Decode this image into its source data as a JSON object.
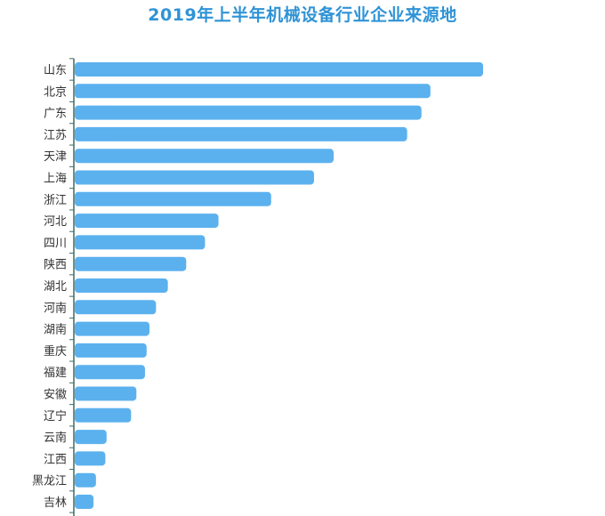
{
  "chart_data": {
    "type": "bar",
    "orientation": "horizontal",
    "title": "2019年上半年机械设备行业企业来源地",
    "xlabel": "",
    "ylabel": "",
    "grid": false,
    "legend": "none",
    "categories": [
      "山东",
      "北京",
      "广东",
      "江苏",
      "天津",
      "上海",
      "浙江",
      "河北",
      "四川",
      "陕西",
      "湖北",
      "河南",
      "湖南",
      "重庆",
      "福建",
      "安徽",
      "辽宁",
      "云南",
      "江西",
      "黑龙江",
      "吉林"
    ],
    "values": [
      100,
      87.1,
      84.9,
      81.4,
      63.4,
      58.6,
      48.1,
      35.2,
      31.9,
      27.3,
      22.8,
      19.9,
      18.3,
      17.6,
      17.2,
      15.1,
      13.8,
      7.8,
      7.5,
      5.2,
      4.6
    ],
    "xlim": [
      0,
      100
    ],
    "colors": {
      "bar": "#5bb1ee",
      "axis": "#3e6b63",
      "title": "#2f93d6"
    }
  }
}
